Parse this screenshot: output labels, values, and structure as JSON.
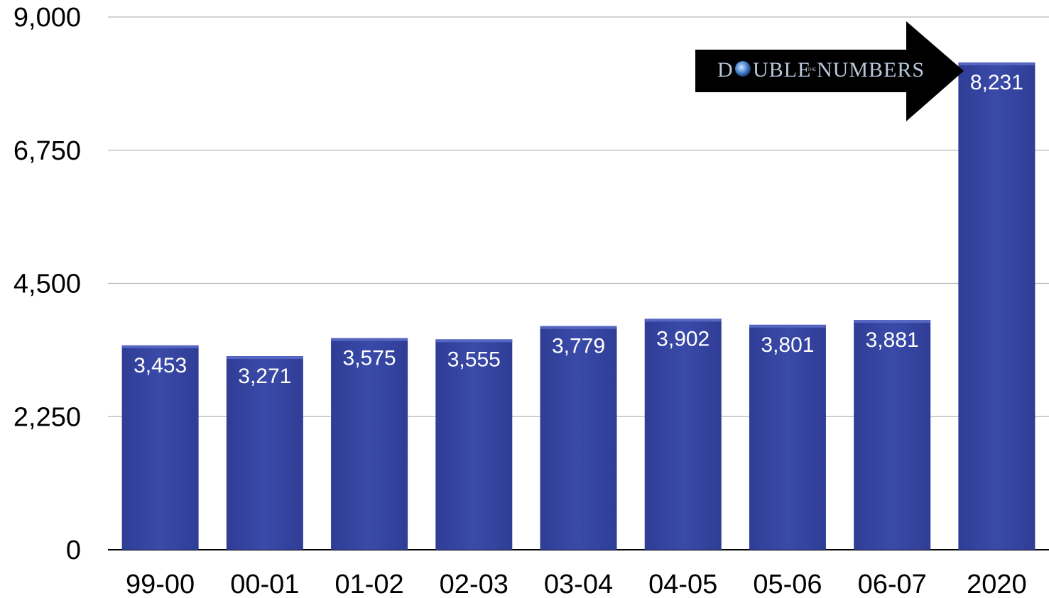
{
  "chart_data": {
    "type": "bar",
    "categories": [
      "99-00",
      "00-01",
      "01-02",
      "02-03",
      "03-04",
      "04-05",
      "05-06",
      "06-07",
      "2020"
    ],
    "values": [
      3453,
      3271,
      3575,
      3555,
      3779,
      3902,
      3801,
      3881,
      8231
    ],
    "value_labels": [
      "3,453",
      "3,271",
      "3,575",
      "3,555",
      "3,779",
      "3,902",
      "3,801",
      "3,881",
      "8,231"
    ],
    "y_ticks": [
      0,
      2250,
      4500,
      6750,
      9000
    ],
    "y_tick_labels": [
      "0",
      "2,250",
      "4,500",
      "6,750",
      "9,000"
    ],
    "ylim": [
      0,
      9000
    ],
    "grid": true,
    "bar_color": "#3545a0",
    "title": "",
    "xlabel": "",
    "ylabel": ""
  },
  "annotation": {
    "logo_icon": "globe-icon",
    "logo_text_left": "D",
    "logo_text_right": "UBLE",
    "logo_small": "THE",
    "logo_text_end": "NUMBERS",
    "arrow_color": "#000000"
  }
}
